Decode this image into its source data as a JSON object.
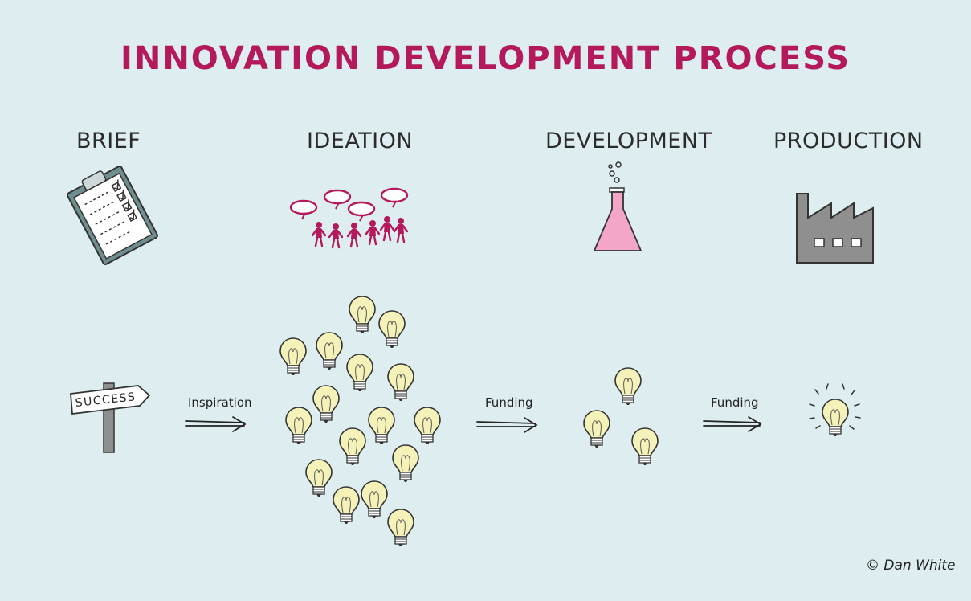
{
  "title": "INNOVATION DEVELOPMENT PROCESS",
  "stages": [
    {
      "label": "BRIEF",
      "icon": "clipboard-checklist-icon"
    },
    {
      "label": "IDEATION",
      "icon": "people-talking-icon"
    },
    {
      "label": "DEVELOPMENT",
      "icon": "flask-icon"
    },
    {
      "label": "PRODUCTION",
      "icon": "factory-icon"
    }
  ],
  "signpost": "SUCCESS",
  "arrows": [
    {
      "label": "Inspiration"
    },
    {
      "label": "Funding"
    },
    {
      "label": "Funding"
    }
  ],
  "bulb_groups": {
    "ideation": 16,
    "development": 3,
    "production": 1
  },
  "credit": "© Dan White",
  "colors": {
    "background": "#deeef0",
    "title": "#b3195b",
    "accent": "#b3195b",
    "bulb": "#f4f2b8",
    "flask": "#f4a6c8",
    "factory": "#8f8f8f"
  }
}
